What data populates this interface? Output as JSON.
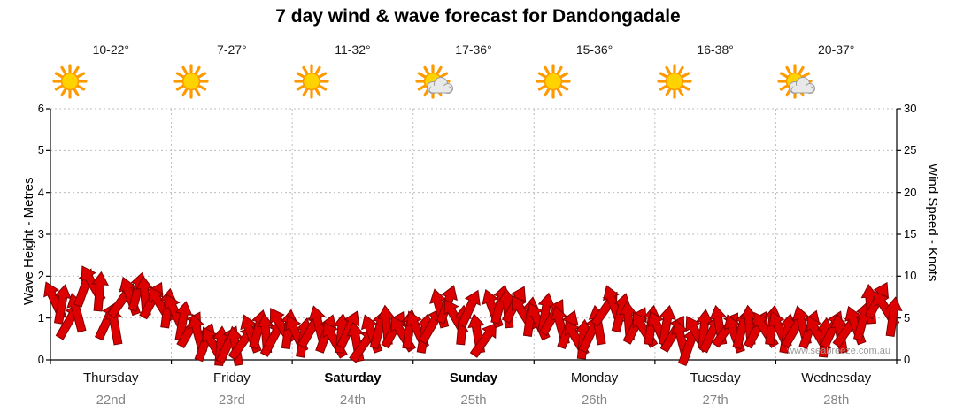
{
  "title": "7 day wind & wave forecast for Dandongadale",
  "watermark": "www.seabreeze.com.au",
  "axes": {
    "left": {
      "label": "Wave Height - Metres",
      "ticks": [
        0,
        1,
        2,
        3,
        4,
        5,
        6
      ],
      "max": 6
    },
    "right": {
      "label": "Wind Speed - Knots",
      "ticks": [
        0,
        5,
        10,
        15,
        20,
        25,
        30
      ],
      "max": 30
    }
  },
  "days": [
    {
      "name": "Thursday",
      "date": "22nd",
      "temp": "10-22°",
      "icon": "sunny",
      "bold": false
    },
    {
      "name": "Friday",
      "date": "23rd",
      "temp": "7-27°",
      "icon": "sunny",
      "bold": false
    },
    {
      "name": "Saturday",
      "date": "24th",
      "temp": "11-32°",
      "icon": "sunny",
      "bold": true
    },
    {
      "name": "Sunday",
      "date": "25th",
      "temp": "17-36°",
      "icon": "partly-cloudy",
      "bold": true
    },
    {
      "name": "Monday",
      "date": "26th",
      "temp": "15-36°",
      "icon": "sunny",
      "bold": false
    },
    {
      "name": "Tuesday",
      "date": "27th",
      "temp": "16-38°",
      "icon": "sunny",
      "bold": false
    },
    {
      "name": "Wednesday",
      "date": "28th",
      "temp": "20-37°",
      "icon": "partly-cloudy",
      "bold": false
    }
  ],
  "colors": {
    "arrow": "#dd0000",
    "arrow_outline": "#7f0000",
    "grid": "#bdbdbd",
    "axis": "#000000",
    "date_text": "#858585",
    "watermark_text": "#9a9a9a",
    "sun": "#ffd300",
    "sun_rays": "#ff9900",
    "cloud": "#e9e9e9"
  },
  "chart_data": {
    "type": "wind-arrows",
    "points_per_day": 16,
    "x_days": [
      "Thursday 22nd",
      "Friday 23rd",
      "Saturday 24th",
      "Sunday 25th",
      "Monday 26th",
      "Tuesday 27th",
      "Wednesday 28th"
    ],
    "ylim_wave": [
      0,
      6
    ],
    "ylim_wind": [
      0,
      30
    ],
    "wave_equiv_scale": "metres = knots / 5",
    "wind_speed_knots": [
      9.5,
      9,
      7,
      8,
      11,
      11.5,
      10.5,
      7,
      6.5,
      9.5,
      10,
      10.5,
      10,
      9.5,
      9,
      8.5,
      8,
      7,
      6,
      5.5,
      4.5,
      4.2,
      4,
      4.2,
      4,
      4.5,
      5.5,
      6,
      5.5,
      5,
      6.5,
      6,
      5.5,
      5,
      6,
      6.5,
      5.5,
      4.8,
      5.5,
      6,
      4.5,
      4.2,
      5.5,
      6,
      6.5,
      6,
      5.5,
      6,
      6,
      5.5,
      6.5,
      8.5,
      9,
      7.5,
      6.5,
      8.5,
      5.5,
      4.8,
      8.5,
      9,
      8.5,
      9,
      8,
      7.5,
      7,
      8,
      7.5,
      6.5,
      6,
      5,
      4.8,
      5.5,
      6.5,
      8.5,
      9,
      8,
      7,
      6.5,
      6,
      6.5,
      6,
      6.5,
      5.5,
      4.8,
      4,
      5.5,
      6,
      5.5,
      6.5,
      6,
      5.5,
      6,
      6.5,
      6,
      6,
      6.5,
      6,
      5.5,
      6,
      6.5,
      6,
      5.5,
      5,
      6,
      5.5,
      6,
      6.5,
      7,
      9,
      9.5,
      8.5,
      7.5
    ],
    "arrow_tilt_deg": [
      -25,
      10,
      30,
      -15,
      20,
      -30,
      5,
      25,
      -10,
      35,
      -20,
      15,
      -5,
      28,
      -32,
      8,
      -25,
      10,
      30,
      -15,
      20,
      -30,
      5,
      25,
      -10,
      35,
      -20,
      15,
      -5,
      28,
      -32,
      8,
      -25,
      10,
      30,
      -15,
      20,
      -30,
      5,
      25,
      -10,
      35,
      -20,
      15,
      -5,
      28,
      -32,
      8,
      -25,
      10,
      30,
      -15,
      20,
      -30,
      5,
      25,
      -10,
      35,
      -20,
      15,
      -5,
      28,
      -32,
      8,
      -25,
      10,
      30,
      -15,
      20,
      -30,
      5,
      25,
      -10,
      35,
      -20,
      15,
      -5,
      28,
      -32,
      8,
      -25,
      10,
      30,
      -15,
      20,
      -30,
      5,
      25,
      -10,
      35,
      -20,
      15,
      -5,
      28,
      -32,
      8,
      -25,
      10,
      30,
      -15,
      20,
      -30,
      5,
      25,
      -10,
      35,
      -20,
      15,
      -5,
      28,
      -32,
      8
    ]
  }
}
